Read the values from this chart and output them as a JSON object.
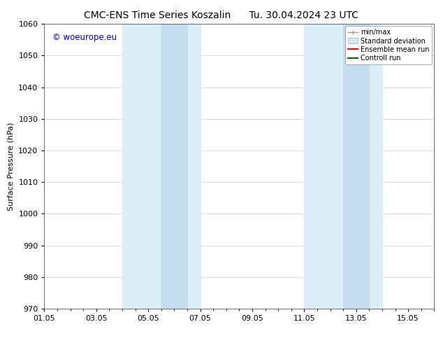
{
  "title_left": "CMC-ENS Time Series Koszalin",
  "title_right": "Tu. 30.04.2024 23 UTC",
  "ylabel": "Surface Pressure (hPa)",
  "ylim": [
    970,
    1060
  ],
  "yticks": [
    970,
    980,
    990,
    1000,
    1010,
    1020,
    1030,
    1040,
    1050,
    1060
  ],
  "xlim": [
    0,
    15
  ],
  "xtick_labels": [
    "01.05",
    "03.05",
    "05.05",
    "07.05",
    "09.05",
    "11.05",
    "13.05",
    "15.05"
  ],
  "xtick_positions": [
    0,
    2,
    4,
    6,
    8,
    10,
    12,
    14
  ],
  "shaded_bands": [
    {
      "x_start": 3.0,
      "x_end": 4.0,
      "color": "#ddeef8"
    },
    {
      "x_start": 4.0,
      "x_end": 5.5,
      "color": "#ddeef8"
    },
    {
      "x_start": 5.5,
      "x_end": 6.0,
      "color": "#ddeef8"
    },
    {
      "x_start": 10.0,
      "x_end": 11.0,
      "color": "#ddeef8"
    },
    {
      "x_start": 11.0,
      "x_end": 12.5,
      "color": "#ddeef8"
    },
    {
      "x_start": 12.5,
      "x_end": 13.0,
      "color": "#ddeef8"
    }
  ],
  "shaded_bands2": [
    {
      "x_start": 3.0,
      "x_end": 6.0,
      "color": "#d4e9f5"
    },
    {
      "x_start": 4.5,
      "x_end": 5.5,
      "color": "#c8dff0"
    },
    {
      "x_start": 10.0,
      "x_end": 13.0,
      "color": "#d4e9f5"
    },
    {
      "x_start": 11.5,
      "x_end": 12.5,
      "color": "#c8dff0"
    }
  ],
  "band1_wide": [
    3.0,
    6.0
  ],
  "band1_narrow": [
    4.5,
    5.5
  ],
  "band2_wide": [
    10.0,
    13.0
  ],
  "band2_narrow": [
    11.5,
    12.5
  ],
  "band_color_wide": "#daeef8",
  "band_color_narrow": "#c5dded",
  "legend_labels": [
    "min/max",
    "Standard deviation",
    "Ensemble mean run",
    "Controll run"
  ],
  "watermark_text": "© woeurope.eu",
  "watermark_color": "#0000cc",
  "background_color": "#ffffff",
  "plot_bg_color": "#ffffff",
  "title_fontsize": 10,
  "label_fontsize": 8,
  "tick_fontsize": 8
}
